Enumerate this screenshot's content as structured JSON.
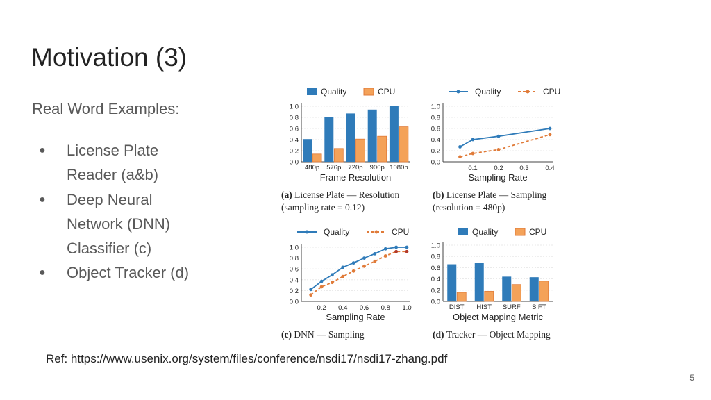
{
  "slide": {
    "title": "Motivation (3)",
    "subtitle": "Real Word Examples:",
    "bullets": [
      "License Plate Reader (a&b)",
      "Deep Neural Network (DNN) Classifier (c)",
      "Object Tracker (d)"
    ],
    "ref": "Ref: https://www.usenix.org/system/files/conference/nsdi17/nsdi17-zhang.pdf",
    "page_number": "5"
  },
  "colors": {
    "quality": "#2f7bb9",
    "cpu": "#f4a259",
    "cpu_line": "#e07b39"
  },
  "chart_data": [
    {
      "type": "bar",
      "categories": [
        "480p",
        "576p",
        "720p",
        "900p",
        "1080p"
      ],
      "series": [
        {
          "name": "Quality",
          "values": [
            0.41,
            0.81,
            0.87,
            0.94,
            1.0
          ]
        },
        {
          "name": "CPU",
          "values": [
            0.14,
            0.24,
            0.41,
            0.46,
            0.63
          ]
        }
      ],
      "xlabel": "Frame Resolution",
      "ylabel": "",
      "ylim": [
        0,
        1.0
      ],
      "yticks": [
        "0.0",
        "0.2",
        "0.4",
        "0.6",
        "0.8",
        "1.0"
      ],
      "legend": "top",
      "grid": true,
      "caption_bold": "(a)",
      "caption_lines": [
        "License Plate — Resolution",
        "(sampling rate = 0.12)"
      ]
    },
    {
      "type": "line",
      "x": [
        0.05,
        0.1,
        0.2,
        0.4
      ],
      "series": [
        {
          "name": "Quality",
          "values": [
            0.27,
            0.4,
            0.46,
            0.6
          ]
        },
        {
          "name": "CPU",
          "values": [
            0.09,
            0.15,
            0.22,
            0.49
          ]
        }
      ],
      "xlabel": "Sampling Rate",
      "ylabel": "",
      "xlim": [
        0,
        0.4
      ],
      "ylim": [
        0,
        1.0
      ],
      "xticks": [
        "0.1",
        "0.2",
        "0.3",
        "0.4"
      ],
      "yticks": [
        "0.0",
        "0.2",
        "0.4",
        "0.6",
        "0.8",
        "1.0"
      ],
      "legend": "top",
      "grid": true,
      "caption_bold": "(b)",
      "caption_lines": [
        "License Plate — Sampling",
        "(resolution = 480p)"
      ]
    },
    {
      "type": "line",
      "x": [
        0.1,
        0.2,
        0.3,
        0.4,
        0.5,
        0.6,
        0.7,
        0.8,
        0.9,
        1.0
      ],
      "series": [
        {
          "name": "Quality",
          "values": [
            0.22,
            0.37,
            0.49,
            0.63,
            0.71,
            0.8,
            0.88,
            0.97,
            1.0,
            1.0
          ]
        },
        {
          "name": "CPU",
          "values": [
            0.12,
            0.27,
            0.35,
            0.46,
            0.56,
            0.65,
            0.74,
            0.84,
            0.92,
            0.92
          ]
        }
      ],
      "xlabel": "Sampling Rate",
      "ylabel": "",
      "xlim": [
        0.05,
        1.0
      ],
      "ylim": [
        0,
        1.0
      ],
      "xticks": [
        "0.2",
        "0.4",
        "0.6",
        "0.8",
        "1.0"
      ],
      "yticks": [
        "0.0",
        "0.2",
        "0.4",
        "0.6",
        "0.8",
        "1.0"
      ],
      "legend": "top",
      "grid": true,
      "caption_bold": "(c)",
      "caption_lines": [
        "DNN — Sampling"
      ]
    },
    {
      "type": "bar",
      "categories": [
        "DIST",
        "HIST",
        "SURF",
        "SIFT"
      ],
      "series": [
        {
          "name": "Quality",
          "values": [
            0.66,
            0.68,
            0.44,
            0.43
          ]
        },
        {
          "name": "CPU",
          "values": [
            0.16,
            0.18,
            0.3,
            0.36
          ]
        }
      ],
      "xlabel": "Object Mapping Metric",
      "ylabel": "",
      "ylim": [
        0,
        1.0
      ],
      "yticks": [
        "0.0",
        "0.2",
        "0.4",
        "0.6",
        "0.8",
        "1.0"
      ],
      "legend": "top",
      "grid": true,
      "caption_bold": "(d)",
      "caption_lines": [
        "Tracker — Object Mapping"
      ]
    }
  ]
}
